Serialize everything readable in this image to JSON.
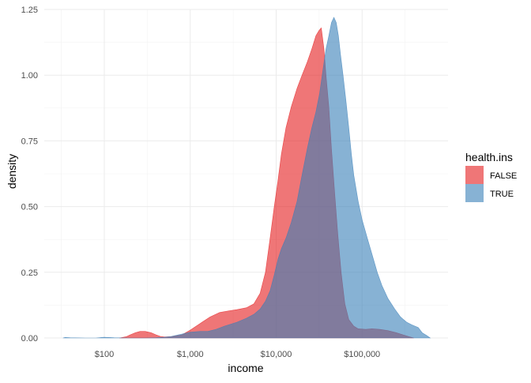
{
  "chart_data": {
    "type": "area",
    "x_scale": "log10",
    "xlabel": "income",
    "ylabel": "density",
    "xlim": [
      20,
      1000000
    ],
    "ylim": [
      0,
      1.25
    ],
    "x_ticks": [
      {
        "value": 100,
        "label": "$100"
      },
      {
        "value": 1000,
        "label": "$1,000"
      },
      {
        "value": 10000,
        "label": "$10,000"
      },
      {
        "value": 100000,
        "label": "$100,000"
      }
    ],
    "y_ticks": [
      {
        "value": 0,
        "label": "0.00"
      },
      {
        "value": 0.25,
        "label": "0.25"
      },
      {
        "value": 0.5,
        "label": "0.50"
      },
      {
        "value": 0.75,
        "label": "0.75"
      },
      {
        "value": 1.0,
        "label": "1.00"
      },
      {
        "value": 1.25,
        "label": "1.25"
      }
    ],
    "grid": true,
    "legend": {
      "title": "health.ins",
      "position": "right",
      "items": [
        {
          "label": "FALSE",
          "color": "#e41a1c"
        },
        {
          "label": "TRUE",
          "color": "#377eb8"
        }
      ]
    },
    "series": [
      {
        "name": "FALSE",
        "color": "#e41a1c",
        "points": [
          [
            150,
            0.0
          ],
          [
            180,
            0.005
          ],
          [
            200,
            0.012
          ],
          [
            230,
            0.02
          ],
          [
            260,
            0.025
          ],
          [
            300,
            0.025
          ],
          [
            350,
            0.02
          ],
          [
            400,
            0.012
          ],
          [
            450,
            0.006
          ],
          [
            500,
            0.004
          ],
          [
            600,
            0.005
          ],
          [
            800,
            0.012
          ],
          [
            1000,
            0.03
          ],
          [
            1300,
            0.055
          ],
          [
            1700,
            0.08
          ],
          [
            2200,
            0.097
          ],
          [
            2800,
            0.103
          ],
          [
            3500,
            0.108
          ],
          [
            4500,
            0.115
          ],
          [
            5500,
            0.13
          ],
          [
            6500,
            0.17
          ],
          [
            7500,
            0.25
          ],
          [
            8500,
            0.38
          ],
          [
            9500,
            0.5
          ],
          [
            10500,
            0.6
          ],
          [
            11500,
            0.7
          ],
          [
            13000,
            0.8
          ],
          [
            15000,
            0.88
          ],
          [
            17500,
            0.95
          ],
          [
            20000,
            1.0
          ],
          [
            23000,
            1.05
          ],
          [
            26000,
            1.1
          ],
          [
            29000,
            1.15
          ],
          [
            31500,
            1.17
          ],
          [
            33500,
            1.18
          ],
          [
            36000,
            1.1
          ],
          [
            38000,
            1.0
          ],
          [
            41000,
            0.88
          ],
          [
            44000,
            0.72
          ],
          [
            48000,
            0.55
          ],
          [
            52000,
            0.4
          ],
          [
            57000,
            0.25
          ],
          [
            63000,
            0.13
          ],
          [
            70000,
            0.07
          ],
          [
            80000,
            0.045
          ],
          [
            90000,
            0.035
          ],
          [
            110000,
            0.033
          ],
          [
            130000,
            0.035
          ],
          [
            160000,
            0.033
          ],
          [
            200000,
            0.028
          ],
          [
            250000,
            0.02
          ],
          [
            300000,
            0.012
          ],
          [
            350000,
            0.005
          ],
          [
            400000,
            0.0
          ]
        ]
      },
      {
        "name": "TRUE",
        "color": "#377eb8",
        "points": [
          [
            33,
            0.0
          ],
          [
            35,
            0.002
          ],
          [
            40,
            0.001
          ],
          [
            60,
            0.0
          ],
          [
            80,
            0.0
          ],
          [
            100,
            0.003
          ],
          [
            130,
            0.001
          ],
          [
            200,
            0.0
          ],
          [
            300,
            0.0
          ],
          [
            400,
            0.001
          ],
          [
            500,
            0.003
          ],
          [
            600,
            0.006
          ],
          [
            800,
            0.015
          ],
          [
            1000,
            0.022
          ],
          [
            1300,
            0.025
          ],
          [
            1600,
            0.025
          ],
          [
            2000,
            0.033
          ],
          [
            2500,
            0.045
          ],
          [
            3500,
            0.06
          ],
          [
            4500,
            0.075
          ],
          [
            5500,
            0.09
          ],
          [
            6500,
            0.11
          ],
          [
            7500,
            0.14
          ],
          [
            8500,
            0.18
          ],
          [
            9500,
            0.24
          ],
          [
            10500,
            0.3
          ],
          [
            11500,
            0.34
          ],
          [
            13000,
            0.38
          ],
          [
            15000,
            0.44
          ],
          [
            17500,
            0.52
          ],
          [
            20000,
            0.62
          ],
          [
            23000,
            0.72
          ],
          [
            26000,
            0.8
          ],
          [
            29000,
            0.86
          ],
          [
            32000,
            0.93
          ],
          [
            35000,
            1.02
          ],
          [
            38000,
            1.1
          ],
          [
            41000,
            1.15
          ],
          [
            44000,
            1.2
          ],
          [
            47000,
            1.22
          ],
          [
            50000,
            1.2
          ],
          [
            53000,
            1.15
          ],
          [
            56000,
            1.08
          ],
          [
            60000,
            1.0
          ],
          [
            65000,
            0.9
          ],
          [
            70000,
            0.8
          ],
          [
            75000,
            0.7
          ],
          [
            80000,
            0.62
          ],
          [
            90000,
            0.52
          ],
          [
            100000,
            0.45
          ],
          [
            115000,
            0.38
          ],
          [
            130000,
            0.32
          ],
          [
            150000,
            0.25
          ],
          [
            170000,
            0.2
          ],
          [
            200000,
            0.15
          ],
          [
            240000,
            0.11
          ],
          [
            280000,
            0.08
          ],
          [
            330000,
            0.06
          ],
          [
            380000,
            0.05
          ],
          [
            450000,
            0.04
          ],
          [
            500000,
            0.02
          ],
          [
            560000,
            0.01
          ],
          [
            620000,
            0.0
          ]
        ]
      }
    ]
  }
}
